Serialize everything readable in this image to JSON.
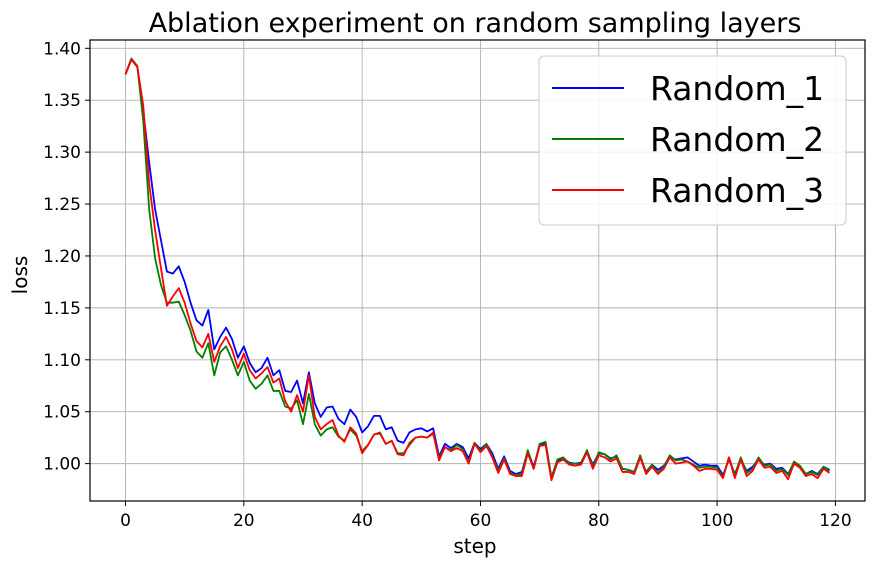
{
  "chart_data": {
    "type": "line",
    "title": "Ablation experiment on random sampling layers",
    "xlabel": "step",
    "ylabel": "loss",
    "xlim": [
      -6,
      125
    ],
    "ylim": [
      0.964,
      1.408
    ],
    "xticks": [
      0,
      20,
      40,
      60,
      80,
      100,
      120
    ],
    "yticks": [
      1.0,
      1.05,
      1.1,
      1.15,
      1.2,
      1.25,
      1.3,
      1.35,
      1.4
    ],
    "xtick_labels": [
      "0",
      "20",
      "40",
      "60",
      "80",
      "100",
      "120"
    ],
    "ytick_labels": [
      "1.00",
      "1.05",
      "1.10",
      "1.15",
      "1.20",
      "1.25",
      "1.30",
      "1.35",
      "1.40"
    ],
    "grid": true,
    "legend_position": "top-right",
    "series": [
      {
        "name": "Random_1",
        "color": "#0000ff",
        "values": [
          1.375,
          1.39,
          1.382,
          1.34,
          1.29,
          1.245,
          1.215,
          1.185,
          1.183,
          1.19,
          1.175,
          1.155,
          1.138,
          1.133,
          1.148,
          1.11,
          1.122,
          1.131,
          1.12,
          1.102,
          1.113,
          1.097,
          1.088,
          1.092,
          1.102,
          1.085,
          1.09,
          1.07,
          1.069,
          1.08,
          1.058,
          1.088,
          1.058,
          1.045,
          1.054,
          1.055,
          1.043,
          1.038,
          1.052,
          1.045,
          1.03,
          1.036,
          1.046,
          1.046,
          1.033,
          1.035,
          1.022,
          1.02,
          1.03,
          1.033,
          1.034,
          1.031,
          1.034,
          1.007,
          1.019,
          1.015,
          1.019,
          1.016,
          1.005,
          1.02,
          1.014,
          1.019,
          1.01,
          0.995,
          1.007,
          0.993,
          0.99,
          0.992,
          1.012,
          0.997,
          1.018,
          1.02,
          0.987,
          1.003,
          1.005,
          1.001,
          1.0,
          1.001,
          1.012,
          0.999,
          1.01,
          1.009,
          1.005,
          1.007,
          0.995,
          0.994,
          0.992,
          1.006,
          0.992,
          0.999,
          0.994,
          0.998,
          1.006,
          1.004,
          1.005,
          1.006,
          1.002,
          0.998,
          0.999,
          0.998,
          0.998,
          0.989,
          1.004,
          0.99,
          1.004,
          0.993,
          0.997,
          1.004,
          0.999,
          1.0,
          0.995,
          0.996,
          0.99,
          1.001,
          0.997,
          0.99,
          0.993,
          0.99,
          0.997,
          0.994
        ]
      },
      {
        "name": "Random_2",
        "color": "#008000",
        "values": [
          1.375,
          1.39,
          1.383,
          1.33,
          1.245,
          1.198,
          1.172,
          1.155,
          1.155,
          1.156,
          1.143,
          1.128,
          1.108,
          1.102,
          1.116,
          1.085,
          1.107,
          1.113,
          1.1,
          1.085,
          1.098,
          1.08,
          1.072,
          1.077,
          1.085,
          1.07,
          1.07,
          1.055,
          1.053,
          1.061,
          1.038,
          1.067,
          1.038,
          1.027,
          1.033,
          1.035,
          1.026,
          1.022,
          1.033,
          1.027,
          1.012,
          1.018,
          1.028,
          1.03,
          1.019,
          1.022,
          1.01,
          1.01,
          1.018,
          1.025,
          1.026,
          1.025,
          1.029,
          1.005,
          1.016,
          1.013,
          1.018,
          1.014,
          1.001,
          1.02,
          1.012,
          1.019,
          1.007,
          0.993,
          1.005,
          0.991,
          0.989,
          0.99,
          1.013,
          0.995,
          1.019,
          1.021,
          0.986,
          1.004,
          1.006,
          1.0,
          1.0,
          1.0,
          1.013,
          0.997,
          1.011,
          1.009,
          1.004,
          1.008,
          0.995,
          0.994,
          0.992,
          1.008,
          0.991,
          0.999,
          0.991,
          0.997,
          1.008,
          1.003,
          1.004,
          1.002,
          0.999,
          0.996,
          0.997,
          0.997,
          0.996,
          0.987,
          1.006,
          0.989,
          1.006,
          0.991,
          0.995,
          1.006,
          0.998,
          0.999,
          0.993,
          0.995,
          0.989,
          1.002,
          0.998,
          0.99,
          0.992,
          0.989,
          0.997,
          0.993
        ]
      },
      {
        "name": "Random_3",
        "color": "#ff0000",
        "values": [
          1.375,
          1.389,
          1.382,
          1.345,
          1.27,
          1.225,
          1.188,
          1.152,
          1.161,
          1.169,
          1.155,
          1.135,
          1.118,
          1.112,
          1.125,
          1.098,
          1.113,
          1.122,
          1.11,
          1.092,
          1.106,
          1.09,
          1.082,
          1.087,
          1.093,
          1.078,
          1.082,
          1.06,
          1.05,
          1.066,
          1.05,
          1.085,
          1.045,
          1.033,
          1.038,
          1.042,
          1.027,
          1.021,
          1.035,
          1.029,
          1.01,
          1.018,
          1.028,
          1.029,
          1.019,
          1.022,
          1.009,
          1.008,
          1.02,
          1.025,
          1.026,
          1.025,
          1.03,
          1.003,
          1.016,
          1.012,
          1.015,
          1.012,
          1.0,
          1.019,
          1.011,
          1.017,
          1.006,
          0.991,
          1.004,
          0.99,
          0.988,
          0.988,
          1.01,
          0.995,
          1.017,
          1.018,
          0.984,
          1.001,
          1.004,
          0.999,
          0.998,
          0.999,
          1.011,
          0.995,
          1.008,
          1.006,
          1.002,
          1.005,
          0.992,
          0.992,
          0.99,
          1.006,
          0.99,
          0.997,
          0.99,
          0.995,
          1.006,
          1.0,
          1.001,
          1.002,
          0.998,
          0.993,
          0.995,
          0.995,
          0.994,
          0.986,
          1.006,
          0.986,
          1.004,
          0.988,
          0.993,
          1.004,
          0.996,
          0.997,
          0.991,
          0.993,
          0.985,
          1.0,
          0.996,
          0.988,
          0.99,
          0.986,
          0.995,
          0.991
        ]
      }
    ]
  }
}
